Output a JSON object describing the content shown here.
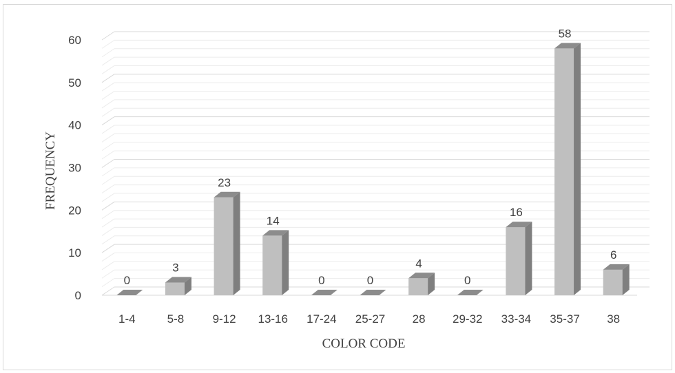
{
  "chart_data": {
    "type": "bar",
    "style": "3d-column",
    "categories": [
      "1-4",
      "5-8",
      "9-12",
      "13-16",
      "17-24",
      "25-27",
      "28",
      "29-32",
      "33-34",
      "35-37",
      "38"
    ],
    "values": [
      0,
      3,
      23,
      14,
      0,
      0,
      4,
      0,
      16,
      58,
      6
    ],
    "data_labels": [
      "0",
      "3",
      "23",
      "14",
      "0",
      "0",
      "4",
      "0",
      "16",
      "58",
      "6"
    ],
    "xlabel": "COLOR CODE",
    "ylabel": "FREQUENCY",
    "ylim": [
      0,
      60
    ],
    "yticks": [
      "0",
      "10",
      "20",
      "30",
      "40",
      "50",
      "60"
    ],
    "grid": true,
    "legend": "none",
    "colors": {
      "bar_front": "#bfbfbf",
      "bar_side": "#7f7f7f",
      "bar_top": "#8c8c8c",
      "gridline": "#d9d9d9",
      "text": "#404040"
    }
  }
}
